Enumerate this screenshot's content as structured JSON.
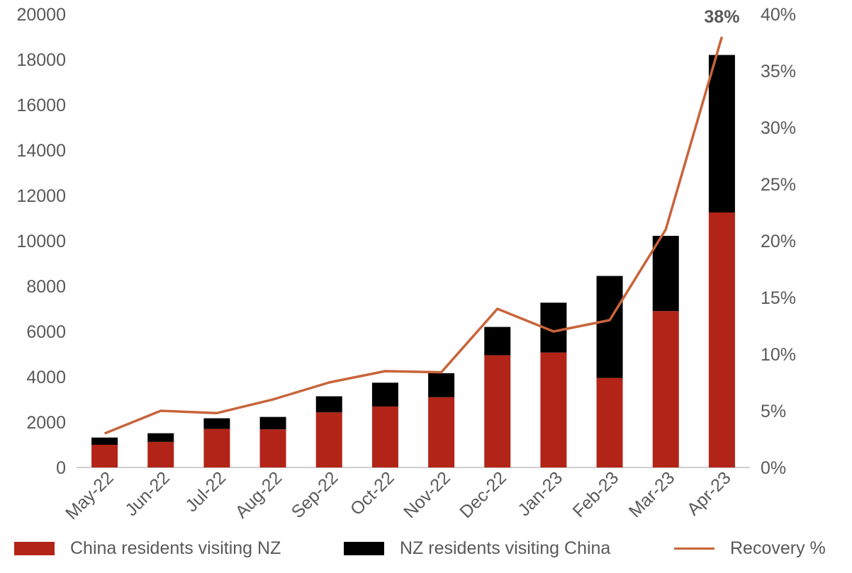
{
  "chart_data": {
    "type": "bar",
    "stacked": true,
    "categories": [
      "May-22",
      "Jun-22",
      "Jul-22",
      "Aug-22",
      "Sep-22",
      "Oct-22",
      "Nov-22",
      "Dec-22",
      "Jan-23",
      "Feb-23",
      "Mar-23",
      "Apr-23"
    ],
    "series": [
      {
        "name": "China residents visiting NZ",
        "type": "bar",
        "axis": "left",
        "color": "#b22418",
        "values": [
          1000,
          1130,
          1700,
          1680,
          2430,
          2690,
          3100,
          4950,
          5070,
          3950,
          6900,
          11250
        ]
      },
      {
        "name": "NZ residents visiting China",
        "type": "bar",
        "axis": "left",
        "color": "#000000",
        "values": [
          320,
          380,
          470,
          550,
          710,
          1050,
          1060,
          1250,
          2200,
          4500,
          3320,
          6950
        ]
      },
      {
        "name": "Recovery %",
        "type": "line",
        "axis": "right",
        "color": "#c8643a",
        "values": [
          3.0,
          5.0,
          4.8,
          6.0,
          7.5,
          8.5,
          8.4,
          14.0,
          12.0,
          13.0,
          21.0,
          38.0
        ]
      }
    ],
    "y_left": {
      "ylim": [
        0,
        20000
      ],
      "ticks": [
        "0",
        "2000",
        "4000",
        "6000",
        "8000",
        "10000",
        "12000",
        "14000",
        "16000",
        "18000",
        "20000"
      ]
    },
    "y_right": {
      "ylim": [
        0,
        40
      ],
      "ticks": [
        "0%",
        "5%",
        "10%",
        "15%",
        "20%",
        "25%",
        "30%",
        "35%",
        "40%"
      ]
    },
    "annotation": {
      "text": "38%",
      "series": "Recovery %",
      "category": "Apr-23"
    },
    "grid": false,
    "legend_position": "bottom"
  }
}
